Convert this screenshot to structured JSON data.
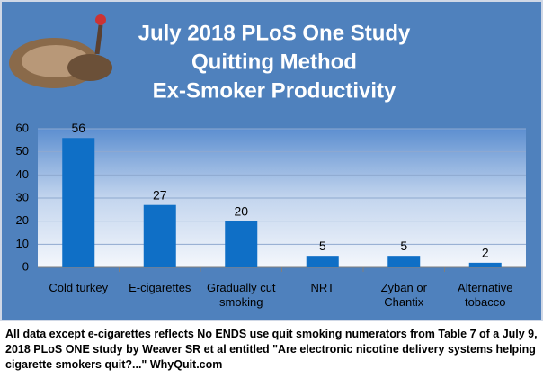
{
  "chart_data": {
    "type": "bar",
    "title": [
      "July 2018 PLoS One Study",
      "Quitting Method",
      "Ex-Smoker Productivity"
    ],
    "categories": [
      "Cold turkey",
      "E-cigarettes",
      "Gradually cut smoking",
      "NRT",
      "Zyban or Chantix",
      "Alternative tobacco"
    ],
    "values": [
      56,
      27,
      20,
      5,
      5,
      2
    ],
    "color": "#0f6fc6",
    "ylim": [
      0,
      60
    ],
    "yticks": [
      0,
      10,
      20,
      30,
      40,
      50,
      60
    ],
    "grid": true,
    "footnote": "All data except e-cigarettes reflects No ENDS use quit smoking numerators from Table 7 of a July 9, 2018 PLoS ONE study by Weaver SR et al entitled \"Are electronic nicotine delivery systems helping cigarette smokers quit?...\"    WhyQuit.com"
  }
}
